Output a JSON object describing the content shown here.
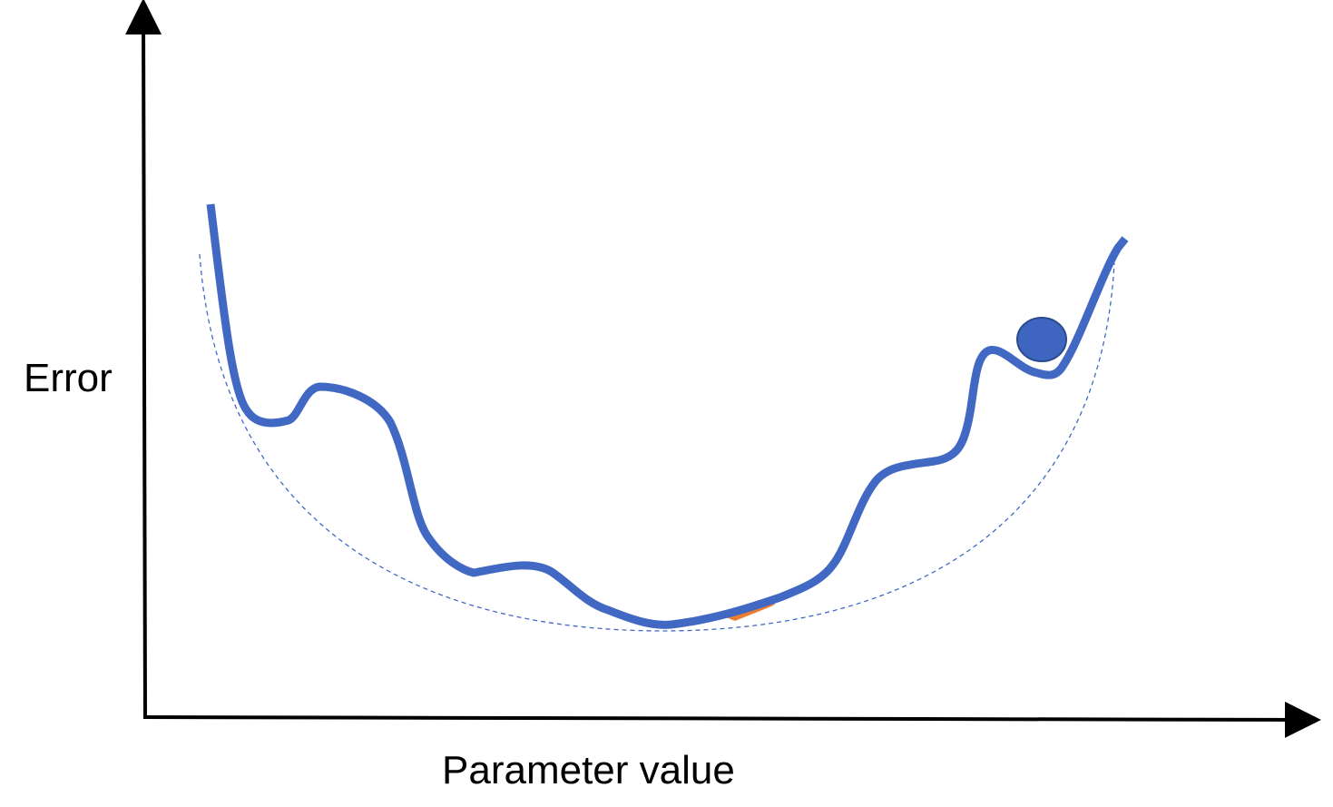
{
  "axes": {
    "y_label": "Error",
    "x_label": "Parameter value"
  },
  "colors": {
    "curve": "#4169c4",
    "ball": "#3e66c1",
    "ball_outline": "#2a4a8c",
    "arrow": "#ed7d31",
    "axis": "#000000"
  }
}
